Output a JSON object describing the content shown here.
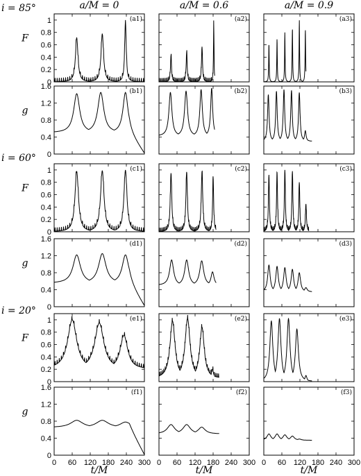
{
  "figure": {
    "column_headers": [
      "a/M = 0",
      "a/M = 0.6",
      "a/M = 0.9"
    ],
    "inclination_labels": [
      "i = 85°",
      "i = 60°",
      "i = 20°"
    ],
    "xlabel": "t/M",
    "row_ylabels": [
      "F",
      "g",
      "F",
      "g",
      "F",
      "g"
    ]
  },
  "chart_data": {
    "type": "line",
    "xlim": [
      0,
      300
    ],
    "xticks": [
      "0",
      "60",
      "120",
      "180",
      "240",
      "300"
    ],
    "F_ylim": [
      0,
      1.1
    ],
    "F_yticks": [
      "0",
      "0.2",
      "0.4",
      "0.6",
      "0.8",
      "1"
    ],
    "g_ylim": [
      0,
      1.6
    ],
    "g_yticks": [
      "0",
      "0.4",
      "0.8",
      "1.2",
      "1.6"
    ],
    "panels": [
      {
        "id": "a1",
        "label": "(a1)",
        "kind": "F",
        "peaks": [
          [
            75,
            0.72,
            5
          ],
          [
            160,
            0.78,
            5
          ],
          [
            237,
            1.0,
            3
          ]
        ],
        "base": 0.0,
        "end": 300,
        "noise": true
      },
      {
        "id": "a2",
        "label": "(a2)",
        "kind": "F",
        "peaks": [
          [
            40,
            0.44,
            2
          ],
          [
            92,
            0.48,
            2
          ],
          [
            143,
            0.57,
            2
          ],
          [
            182,
            1.0,
            1
          ]
        ],
        "base": 0.0,
        "end": 185,
        "noise": true
      },
      {
        "id": "a3",
        "label": "(a3)",
        "kind": "F",
        "peaks": [
          [
            17,
            0.62,
            1
          ],
          [
            44,
            0.7,
            1
          ],
          [
            70,
            0.8,
            1
          ],
          [
            95,
            0.88,
            1
          ],
          [
            118,
            1.0,
            1
          ],
          [
            138,
            0.85,
            1
          ]
        ],
        "base": 0.0,
        "end": 140,
        "noise": false
      },
      {
        "id": "b1",
        "label": "(b1)",
        "kind": "g",
        "peaks": [
          [
            75,
            1.42,
            12
          ],
          [
            155,
            1.45,
            12
          ],
          [
            237,
            1.45,
            10
          ]
        ],
        "base": 0.5,
        "end": 300,
        "tail": true
      },
      {
        "id": "b2",
        "label": "(b2)",
        "kind": "g",
        "peaks": [
          [
            38,
            1.45,
            6
          ],
          [
            90,
            1.48,
            6
          ],
          [
            140,
            1.52,
            5
          ],
          [
            175,
            1.55,
            4
          ]
        ],
        "base": 0.42,
        "end": 185
      },
      {
        "id": "b3",
        "label": "(b3)",
        "kind": "g",
        "peaks": [
          [
            15,
            1.4,
            3
          ],
          [
            42,
            1.48,
            3
          ],
          [
            67,
            1.52,
            3
          ],
          [
            92,
            1.5,
            3
          ],
          [
            118,
            1.45,
            3
          ],
          [
            138,
            0.55,
            3
          ]
        ],
        "base": 0.3,
        "end": 160
      },
      {
        "id": "c1",
        "label": "(c1)",
        "kind": "F",
        "peaks": [
          [
            75,
            0.98,
            7
          ],
          [
            160,
            0.99,
            7
          ],
          [
            237,
            1.0,
            6
          ]
        ],
        "base": 0.0,
        "end": 300,
        "noise": true
      },
      {
        "id": "c2",
        "label": "(c2)",
        "kind": "F",
        "peaks": [
          [
            40,
            0.95,
            3
          ],
          [
            92,
            0.97,
            3
          ],
          [
            143,
            0.98,
            3
          ],
          [
            180,
            0.9,
            2
          ]
        ],
        "base": 0.0,
        "end": 190,
        "noise": true
      },
      {
        "id": "c3",
        "label": "(c3)",
        "kind": "F",
        "peaks": [
          [
            17,
            0.92,
            2
          ],
          [
            44,
            0.96,
            2
          ],
          [
            70,
            1.0,
            2
          ],
          [
            95,
            0.98,
            2
          ],
          [
            118,
            0.8,
            2
          ],
          [
            140,
            0.45,
            2
          ]
        ],
        "base": 0.0,
        "end": 150,
        "noise": true
      },
      {
        "id": "d1",
        "label": "(d1)",
        "kind": "g",
        "peaks": [
          [
            75,
            1.22,
            15
          ],
          [
            160,
            1.25,
            15
          ],
          [
            237,
            1.22,
            13
          ]
        ],
        "base": 0.55,
        "end": 300,
        "tail": true
      },
      {
        "id": "d2",
        "label": "(d2)",
        "kind": "g",
        "peaks": [
          [
            42,
            1.1,
            8
          ],
          [
            92,
            1.1,
            8
          ],
          [
            142,
            1.08,
            8
          ],
          [
            178,
            0.82,
            6
          ]
        ],
        "base": 0.5,
        "end": 190
      },
      {
        "id": "d3",
        "label": "(d3)",
        "kind": "g",
        "peaks": [
          [
            17,
            0.98,
            5
          ],
          [
            44,
            0.95,
            5
          ],
          [
            70,
            0.92,
            5
          ],
          [
            95,
            0.88,
            5
          ],
          [
            118,
            0.8,
            5
          ],
          [
            140,
            0.45,
            5
          ]
        ],
        "base": 0.35,
        "end": 160
      },
      {
        "id": "e1",
        "label": "(e1)",
        "kind": "F",
        "peaks": [
          [
            60,
            1.0,
            18
          ],
          [
            150,
            0.95,
            18
          ],
          [
            232,
            0.75,
            15
          ]
        ],
        "base": 0.2,
        "end": 300,
        "noise": true
      },
      {
        "id": "e2",
        "label": "(e2)",
        "kind": "F",
        "peaks": [
          [
            45,
            0.98,
            10
          ],
          [
            95,
            1.02,
            10
          ],
          [
            143,
            0.88,
            9
          ],
          [
            178,
            0.2,
            4
          ]
        ],
        "base": 0.05,
        "end": 200,
        "noise": true
      },
      {
        "id": "e3",
        "label": "(e3)",
        "kind": "F",
        "peaks": [
          [
            25,
            0.98,
            6
          ],
          [
            52,
            1.02,
            6
          ],
          [
            82,
            1.02,
            6
          ],
          [
            110,
            0.85,
            6
          ],
          [
            140,
            0.1,
            4
          ]
        ],
        "base": 0.0,
        "end": 160,
        "noise": false
      },
      {
        "id": "f1",
        "label": "(f1)",
        "kind": "g",
        "peaks": [
          [
            75,
            0.82,
            25
          ],
          [
            160,
            0.82,
            25
          ],
          [
            237,
            0.78,
            22
          ]
        ],
        "base": 0.65,
        "end": 300,
        "tail": true
      },
      {
        "id": "f2",
        "label": "(f2)",
        "kind": "g",
        "peaks": [
          [
            40,
            0.72,
            15
          ],
          [
            92,
            0.72,
            15
          ],
          [
            142,
            0.66,
            14
          ],
          [
            178,
            0.35,
            8
          ]
        ],
        "base": 0.5,
        "end": 200
      },
      {
        "id": "f3",
        "label": "(f3)",
        "kind": "g",
        "peaks": [
          [
            17,
            0.5,
            8
          ],
          [
            44,
            0.5,
            8
          ],
          [
            70,
            0.48,
            8
          ],
          [
            95,
            0.45,
            8
          ],
          [
            118,
            0.38,
            8
          ],
          [
            140,
            0.15,
            6
          ]
        ],
        "base": 0.35,
        "end": 160
      }
    ]
  }
}
